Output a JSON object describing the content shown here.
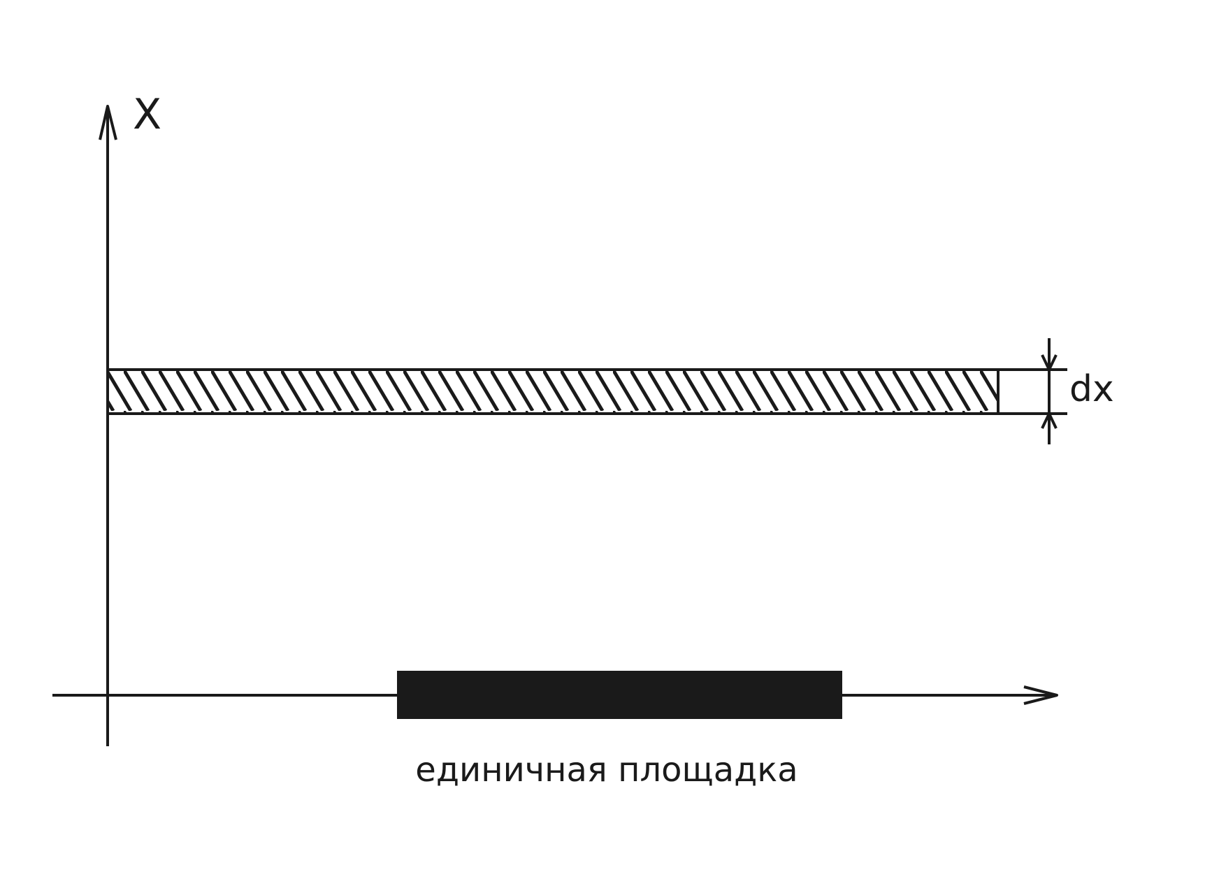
{
  "labels": {
    "y_axis": "X",
    "strip_thickness": "dx",
    "caption": "единичная площадка"
  },
  "colors": {
    "ink": "#1a1a1a",
    "background": "#ffffff"
  }
}
